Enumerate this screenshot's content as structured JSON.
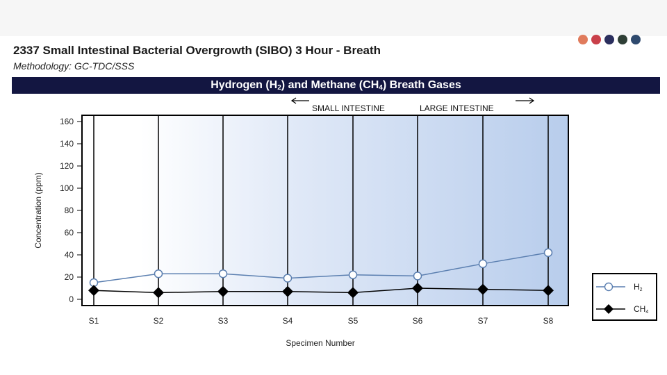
{
  "header": {
    "title": "2337 Small Intestinal Bacterial Overgrowth (SIBO) 3 Hour - Breath",
    "methodology": "Methodology: GC-TDC/SSS",
    "dot_colors": [
      "#e07b5c",
      "#c9404a",
      "#2b2f5e",
      "#2f3f36",
      "#2f4a6e"
    ]
  },
  "section": {
    "title_pre": "Hydrogen (H",
    "title_sub1": "2",
    "title_mid": ") and Methane (CH",
    "title_sub2": "4",
    "title_post": ") Breath Gases",
    "bar_color": "#131641"
  },
  "chart_data": {
    "type": "line",
    "categories": [
      "S1",
      "S2",
      "S3",
      "S4",
      "S5",
      "S6",
      "S7",
      "S8"
    ],
    "series": [
      {
        "name": "H",
        "name_sub": "2",
        "marker": "open-circle",
        "color": "#5b7fb0",
        "values": [
          15,
          23,
          23,
          19,
          22,
          21,
          32,
          42
        ]
      },
      {
        "name": "CH",
        "name_sub": "4",
        "marker": "filled-diamond",
        "color": "#000000",
        "values": [
          8,
          6,
          7,
          7,
          6,
          10,
          9,
          8
        ]
      }
    ],
    "ylabel": "Concentration (ppm)",
    "xlabel": "Specimen Number",
    "ylim": [
      0,
      160
    ],
    "yticks": [
      0,
      20,
      40,
      60,
      80,
      100,
      120,
      140,
      160
    ],
    "annotations": {
      "small_intestine": "SMALL INTESTINE",
      "large_intestine": "LARGE INTESTINE"
    },
    "grid": "vertical lines at each specimen",
    "legend_position": "right",
    "background": "white to light-blue gradient"
  }
}
